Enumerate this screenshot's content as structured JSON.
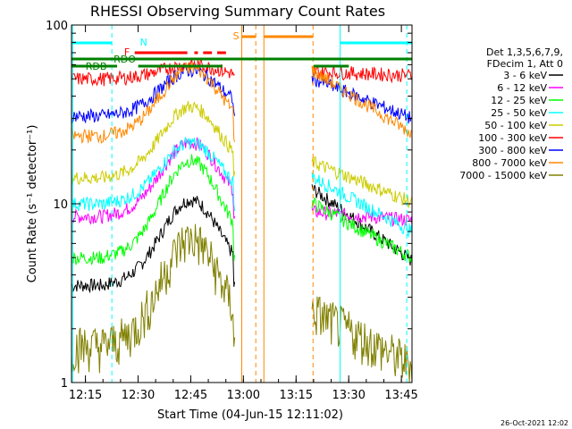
{
  "chart_data": {
    "type": "line",
    "title": "RHESSI Observing Summary Count Rates",
    "xlabel": "Start Time (04-Jun-15 12:11:02)",
    "ylabel": "Count Rate (s⁻¹ detector⁻¹)",
    "yscale": "log",
    "ylim": [
      1,
      100
    ],
    "xlim_minutes_since_start": [
      0,
      97
    ],
    "x_ticks": [
      {
        "label": "12:15",
        "minute": 3.97
      },
      {
        "label": "12:30",
        "minute": 18.97
      },
      {
        "label": "12:45",
        "minute": 33.97
      },
      {
        "label": "13:00",
        "minute": 48.97
      },
      {
        "label": "13:15",
        "minute": 63.97
      },
      {
        "label": "13:30",
        "minute": 78.97
      },
      {
        "label": "13:45",
        "minute": 93.97
      }
    ],
    "y_ticks": [
      {
        "label": "1",
        "value": 1
      },
      {
        "label": "10",
        "value": 10
      },
      {
        "label": "100",
        "value": 100
      }
    ],
    "legend_header": [
      "Det 1,3,5,6,7,9,",
      "FDecim 1, Att 0"
    ],
    "legend_position": "right",
    "series": [
      {
        "name": "3 - 6 keV",
        "color": "#000000"
      },
      {
        "name": "6 - 12 keV",
        "color": "#ff00ff"
      },
      {
        "name": "12 - 25 keV",
        "color": "#00ff00"
      },
      {
        "name": "25 - 50 keV",
        "color": "#00ffff"
      },
      {
        "name": "50 - 100 keV",
        "color": "#cccc00"
      },
      {
        "name": "100 - 300 keV",
        "color": "#ff0000"
      },
      {
        "name": "300 - 800 keV",
        "color": "#0000ff"
      },
      {
        "name": "800 - 7000 keV",
        "color": "#ff8800"
      },
      {
        "name": "7000 - 15000 keV",
        "color": "#808000"
      }
    ],
    "flag_bars": [
      {
        "label": "N",
        "color": "#00ffff"
      },
      {
        "label": "F",
        "color": "#ff0000"
      },
      {
        "label": "S",
        "color": "#ff8800"
      },
      {
        "label": "RDO",
        "color": "#008000"
      },
      {
        "label": "RDB",
        "color": "#008000"
      }
    ],
    "footer_date": "26-Oct-2021 12:02"
  }
}
